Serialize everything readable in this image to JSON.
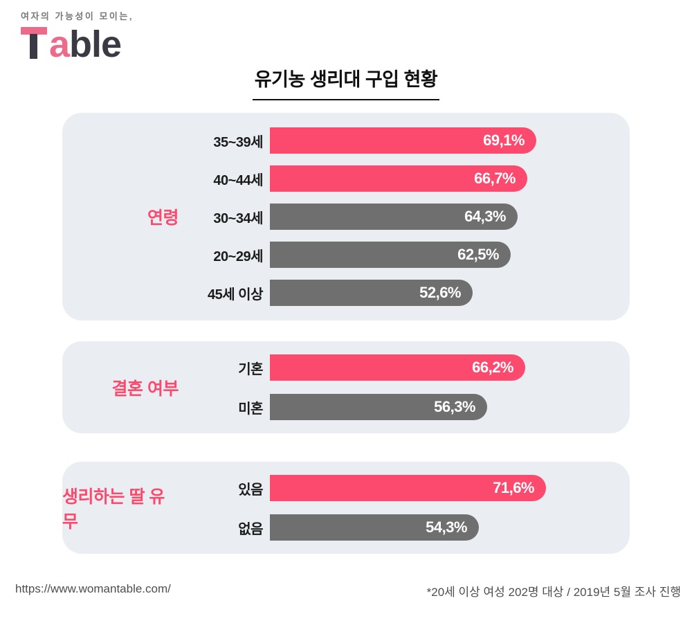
{
  "logo": {
    "tagline": "여자의 가능성이 모이는,",
    "wordmark": "Table",
    "wordmark_a": "a",
    "wordmark_rest": "ble"
  },
  "chart_data": {
    "type": "bar",
    "orientation": "horizontal",
    "title": "유기농 생리대 구입 현황",
    "unit": "%",
    "xlim": [
      0,
      100
    ],
    "highlight_color": "#FB4A6E",
    "base_color": "#6F6F6F",
    "groups": [
      {
        "name": "연령",
        "rows": [
          {
            "label": "35~39세",
            "value": 69.1,
            "display": "69,1%",
            "emphasis": true
          },
          {
            "label": "40~44세",
            "value": 66.7,
            "display": "66,7%",
            "emphasis": true
          },
          {
            "label": "30~34세",
            "value": 64.3,
            "display": "64,3%",
            "emphasis": false
          },
          {
            "label": "20~29세",
            "value": 62.5,
            "display": "62,5%",
            "emphasis": false
          },
          {
            "label": "45세 이상",
            "value": 52.6,
            "display": "52,6%",
            "emphasis": false
          }
        ]
      },
      {
        "name": "결혼 여부",
        "rows": [
          {
            "label": "기혼",
            "value": 66.2,
            "display": "66,2%",
            "emphasis": true
          },
          {
            "label": "미혼",
            "value": 56.3,
            "display": "56,3%",
            "emphasis": false
          }
        ]
      },
      {
        "name": "생리하는 딸 유무",
        "rows": [
          {
            "label": "있음",
            "value": 71.6,
            "display": "71,6%",
            "emphasis": true
          },
          {
            "label": "없음",
            "value": 54.3,
            "display": "54,3%",
            "emphasis": false
          }
        ]
      }
    ]
  },
  "footer": {
    "url": "https://www.womantable.com/",
    "note": "*20세 이상 여성 202명 대상 / 2019년 5월 조사 진행"
  }
}
